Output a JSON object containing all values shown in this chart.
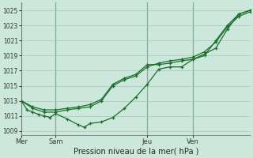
{
  "background_color": "#cce8dc",
  "grid_color": "#a8c8b8",
  "line_color": "#1a6e2a",
  "vline_color": "#336633",
  "xlabel": "Pression niveau de la mer( hPa )",
  "ylim": [
    1008.5,
    1026.0
  ],
  "yticks": [
    1009,
    1011,
    1013,
    1015,
    1017,
    1019,
    1021,
    1023,
    1025
  ],
  "xlim": [
    0,
    120
  ],
  "day_labels": [
    "Mer",
    "Sam",
    "Jeu",
    "Ven"
  ],
  "day_positions": [
    0,
    18,
    66,
    90
  ],
  "line1_x": [
    0,
    3,
    6,
    9,
    12,
    15,
    18,
    24,
    30,
    33,
    36,
    42,
    48,
    54,
    60,
    66,
    72,
    78,
    84,
    90,
    96,
    102,
    108,
    114,
    120
  ],
  "line1_y": [
    1013,
    1011.8,
    1011.5,
    1011.2,
    1011.0,
    1010.8,
    1011.3,
    1010.6,
    1009.8,
    1009.5,
    1010.0,
    1010.2,
    1010.8,
    1012.0,
    1013.5,
    1015.2,
    1017.2,
    1017.5,
    1017.5,
    1018.5,
    1019.0,
    1021.0,
    1023.0,
    1024.5,
    1025.0
  ],
  "line2_x": [
    0,
    6,
    12,
    18,
    24,
    30,
    36,
    42,
    48,
    54,
    60,
    66,
    72,
    78,
    84,
    90,
    96,
    102,
    108,
    114,
    120
  ],
  "line2_y": [
    1013,
    1012.2,
    1011.8,
    1011.8,
    1012.0,
    1012.2,
    1012.5,
    1013.2,
    1015.2,
    1016.0,
    1016.5,
    1017.8,
    1017.8,
    1018.0,
    1018.3,
    1018.5,
    1019.2,
    1020.0,
    1022.5,
    1024.5,
    1025.0
  ],
  "line3_x": [
    0,
    6,
    12,
    18,
    24,
    30,
    36,
    42,
    48,
    54,
    60,
    66,
    72,
    78,
    84,
    90,
    96,
    102,
    108,
    114,
    120
  ],
  "line3_y": [
    1013,
    1012.0,
    1011.5,
    1011.5,
    1011.8,
    1012.0,
    1012.2,
    1013.0,
    1015.0,
    1015.8,
    1016.3,
    1017.5,
    1018.0,
    1018.3,
    1018.5,
    1018.8,
    1019.5,
    1020.8,
    1022.8,
    1024.2,
    1024.8
  ]
}
